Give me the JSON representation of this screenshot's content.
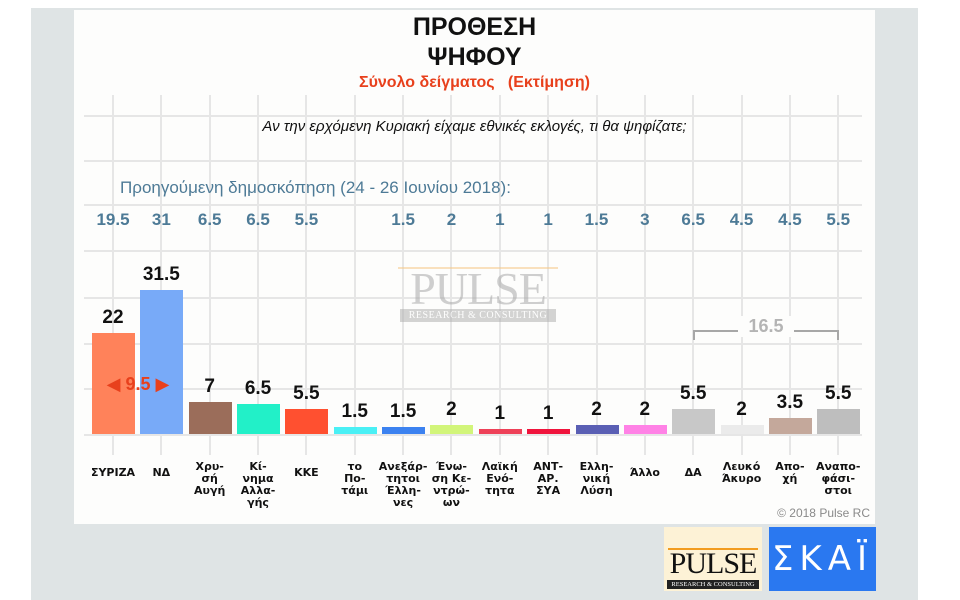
{
  "header": {
    "title_line1": "ΠΡΟΘΕΣΗ",
    "title_line2": "ΨΗΦΟΥ",
    "subtitle": "Σύνολο δείγματος   (Εκτίμηση)",
    "question": "Αν την ερχόμενη Κυριακή είχαμε εθνικές εκλογές, τι θα ψηφίζατε;",
    "previous_poll_label": "Προηγούμενη δημοσκόπηση (24 - 26 Ιουνίου 2018):"
  },
  "annotations": {
    "lead_difference": "◀ 9.5 ▶",
    "lead_difference_value": "9.5",
    "undecided_bracket_label": "16.5"
  },
  "watermark": {
    "brand": "PULSE",
    "tagline": "RESEARCH & CONSULTING"
  },
  "footer": {
    "copyright": "© 2018 Pulse RC",
    "logo_pulse": "PULSE",
    "logo_pulse_tagline": "RESEARCH & CONSULTING",
    "logo_skai": "ΣΚΑΪ"
  },
  "colors": {
    "title": "#111111",
    "subtitle": "#e8401c",
    "previous_values": "#4d7a96",
    "skai_blue": "#2a78f0"
  },
  "chart_data": {
    "type": "bar",
    "title": "ΠΡΟΘΕΣΗ ΨΗΦΟΥ",
    "subtitle": "Σύνολο δείγματος (Εκτίμηση)",
    "xlabel": "",
    "ylabel": "",
    "ylim": [
      0,
      35
    ],
    "grid": true,
    "legend": "none",
    "categories": [
      "ΣΥΡΙΖΑ",
      "ΝΔ",
      "Χρυσή Αυγή",
      "Κίνημα Αλλαγής",
      "ΚΚΕ",
      "το Ποτάμι",
      "Ανεξάρτητοι Έλληνες",
      "Ένωση Κεντρώων",
      "Λαϊκή Ενότητα",
      "ΑΝΤΑΡΣΥΑ",
      "Ελληνική Λύση",
      "Άλλο",
      "ΔΑ",
      "Λευκό Άκυρο",
      "Αποχή",
      "Αναποφάσιστοι"
    ],
    "category_labels_display": [
      "ΣΥΡΙΖΑ",
      "ΝΔ",
      "Χρυ-\nσή\nΑυγή",
      "Κί-\nνημα\nΑλλα-\nγής",
      "ΚΚΕ",
      "το\nΠο-\nτάμι",
      "Ανεξάρ-\nτητοι\nΈλλη-\nνες",
      "Ένω-\nση Κε-\nντρώ-\nων",
      "Λαϊκή\nΕνό-\nτητα",
      "ΑΝΤ-\nΑΡ.\nΣΥΑ",
      "Ελλη-\nνική\nΛύση",
      "Άλλο",
      "ΔΑ",
      "Λευκό\nΆκυρο",
      "Απο-\nχή",
      "Αναπο-\nφάσι-\nστοι"
    ],
    "series": [
      {
        "name": "Εκτίμηση",
        "values": [
          22,
          31.5,
          7,
          6.5,
          5.5,
          1.5,
          1.5,
          2,
          1,
          1,
          2,
          2,
          5.5,
          2,
          3.5,
          5.5
        ],
        "value_labels": [
          "22",
          "31.5",
          "7",
          "6.5",
          "5.5",
          "1.5",
          "1.5",
          "2",
          "1",
          "1",
          "2",
          "2",
          "5.5",
          "2",
          "3.5",
          "5.5"
        ],
        "colors": [
          "#ff825a",
          "#78aaf8",
          "#9b6d5a",
          "#22f0c8",
          "#ff5030",
          "#4af0f5",
          "#3c82f0",
          "#d2f57a",
          "#ee4158",
          "#f0143c",
          "#5a5fb4",
          "#ff82e6",
          "#c8c8c8",
          "#ebebeb",
          "#c4a89b",
          "#bebebe"
        ]
      },
      {
        "name": "Προηγούμενη δημοσκόπηση (24 - 26 Ιουνίου 2018)",
        "values": [
          19.5,
          31,
          6.5,
          6.5,
          5.5,
          null,
          1.5,
          2,
          1,
          1,
          1.5,
          3,
          6.5,
          4.5,
          4.5,
          5.5
        ],
        "value_labels": [
          "19.5",
          "31",
          "6.5",
          "6.5",
          "5.5",
          "",
          "1.5",
          "2",
          "1",
          "1",
          "1.5",
          "3",
          "6.5",
          "4.5",
          "4.5",
          "5.5"
        ]
      }
    ],
    "annotations": [
      {
        "text": "9.5",
        "type": "difference",
        "between": [
          "ΣΥΡΙΖΑ",
          "ΝΔ"
        ]
      },
      {
        "text": "16.5",
        "type": "bracket_sum",
        "spans": [
          "ΔΑ",
          "Λευκό Άκυρο",
          "Αποχή",
          "Αναποφάσιστοι"
        ]
      }
    ]
  }
}
